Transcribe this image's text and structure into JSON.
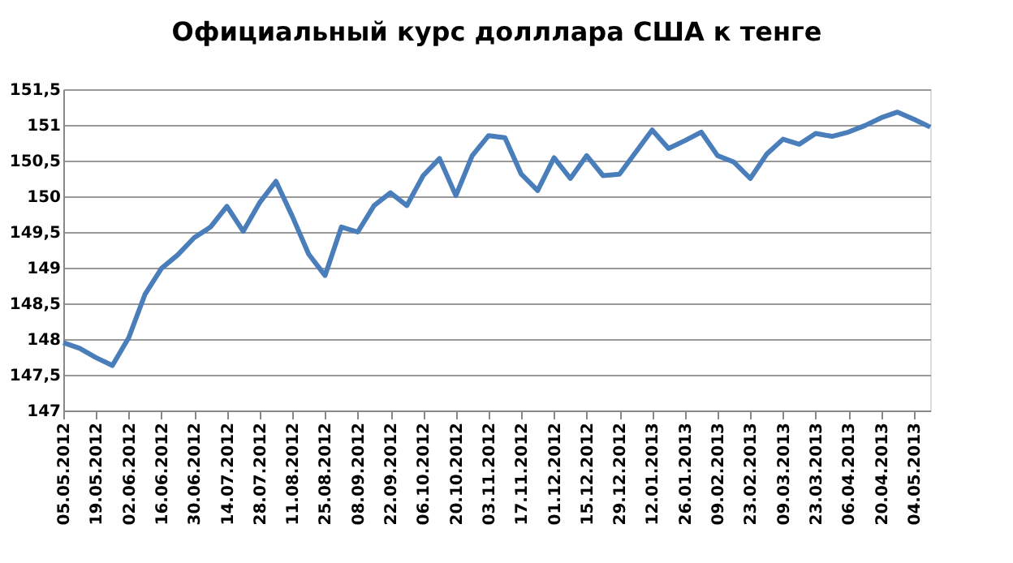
{
  "chart_data": {
    "type": "line",
    "title": "Официальный курс долллара США к тенге",
    "categories": [
      "05.05.2012",
      null,
      "19.05.2012",
      null,
      "02.06.2012",
      null,
      "16.06.2012",
      null,
      "30.06.2012",
      null,
      "14.07.2012",
      null,
      "28.07.2012",
      null,
      "11.08.2012",
      null,
      "25.08.2012",
      null,
      "08.09.2012",
      null,
      "22.09.2012",
      null,
      "06.10.2012",
      null,
      "20.10.2012",
      null,
      "03.11.2012",
      null,
      "17.11.2012",
      null,
      "01.12.2012",
      null,
      "15.12.2012",
      null,
      "29.12.2012",
      null,
      "12.01.2013",
      null,
      "26.01.2013",
      null,
      "09.02.2013",
      null,
      "23.02.2013",
      null,
      "09.03.2013",
      null,
      "23.03.2013",
      null,
      "06.04.2013",
      null,
      "20.04.2013",
      null,
      "04.05.2013",
      null
    ],
    "series": [
      {
        "color": "#4a7ebb",
        "values": [
          147.95,
          147.87,
          147.74,
          147.63,
          148.02,
          148.63,
          148.99,
          149.18,
          149.42,
          149.57,
          149.86,
          149.51,
          149.91,
          150.21,
          149.72,
          149.19,
          148.89,
          149.57,
          149.5,
          149.87,
          150.05,
          149.87,
          150.29,
          150.53,
          150.01,
          150.57,
          150.85,
          150.82,
          150.31,
          150.08,
          150.54,
          150.25,
          150.57,
          150.29,
          150.31,
          150.62,
          150.93,
          150.67,
          150.78,
          150.9,
          150.57,
          150.48,
          150.25,
          150.59,
          150.8,
          150.73,
          150.88,
          150.84,
          150.9,
          150.99,
          151.1,
          151.18,
          151.08,
          150.97
        ]
      }
    ],
    "ylim": [
      147,
      151.5
    ],
    "yticks": [
      147,
      {
        "value": 147.5,
        "label": "147,5"
      },
      148,
      {
        "value": 148.5,
        "label": "148,5"
      },
      149,
      {
        "value": 149.5,
        "label": "149,5"
      },
      150,
      {
        "value": 150.5,
        "label": "150,5"
      },
      151,
      {
        "value": 151.5,
        "label": "151,5"
      }
    ],
    "grid": "y",
    "marker": "none",
    "line_style": "solid"
  }
}
